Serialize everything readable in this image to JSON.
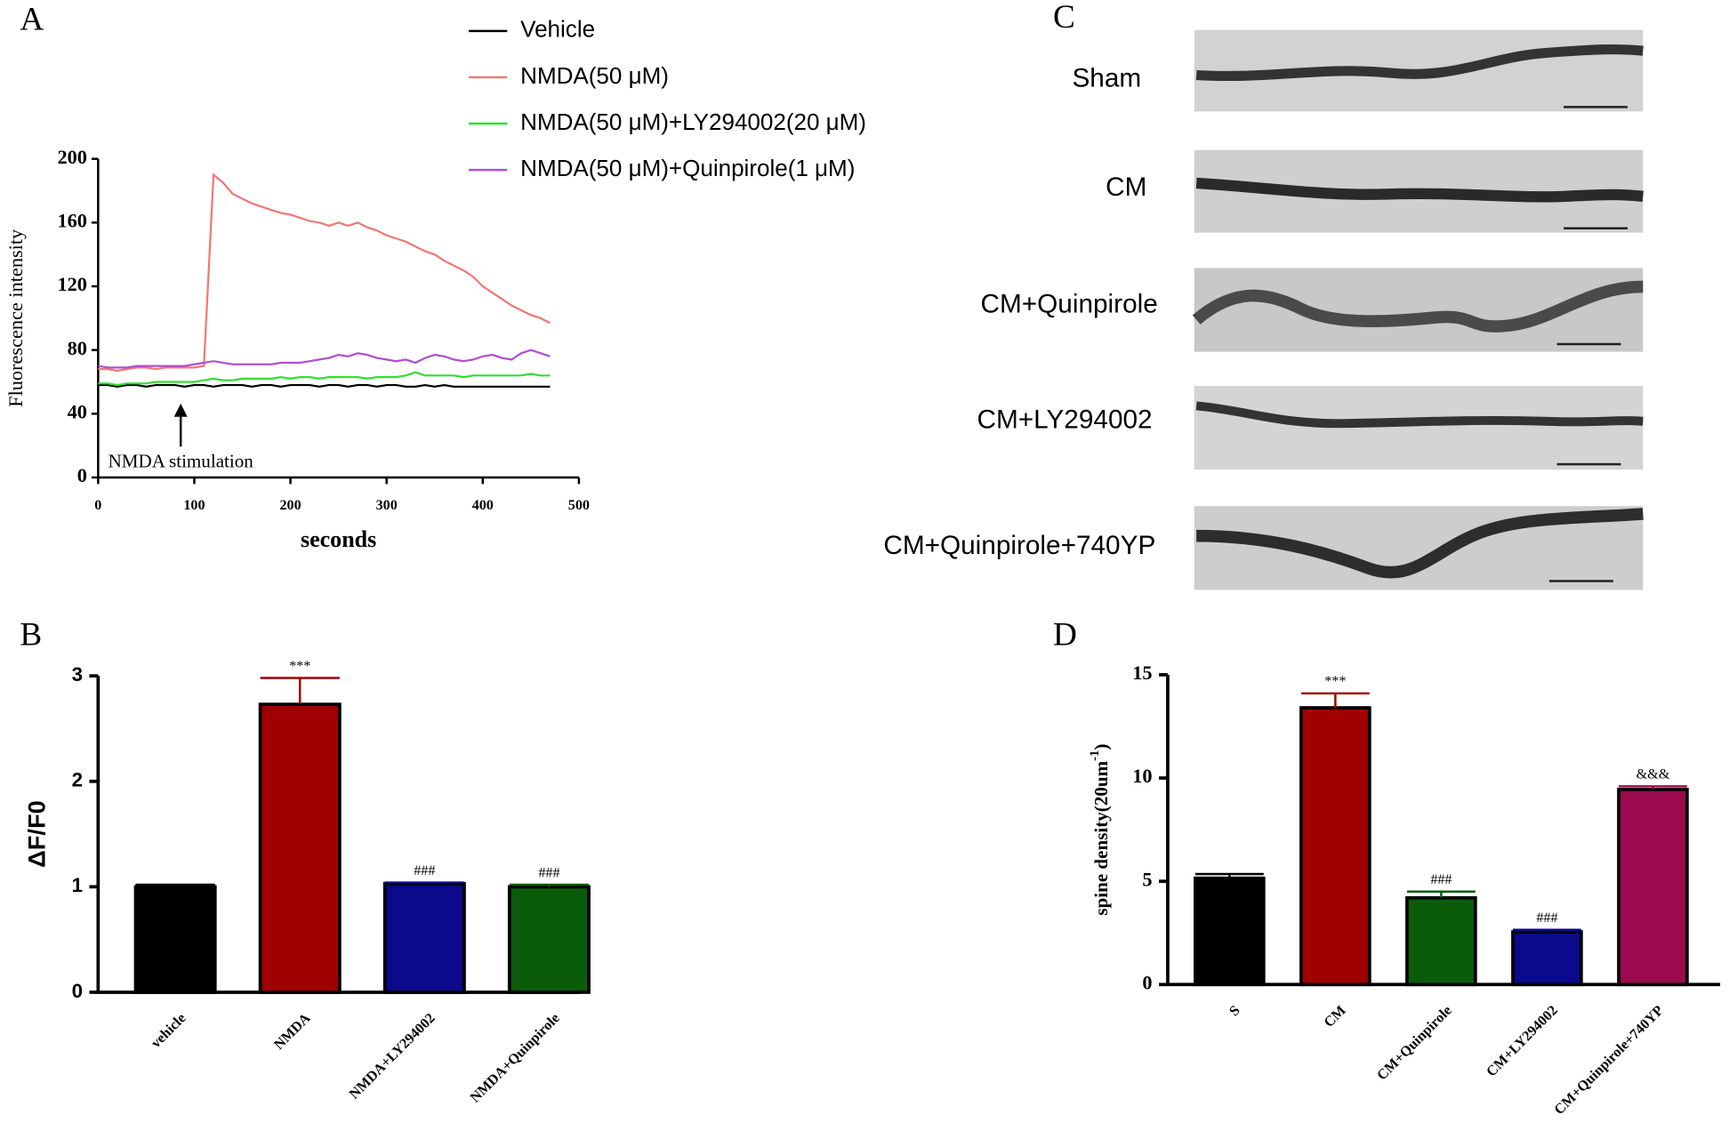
{
  "panel_labels": [
    "A",
    "B",
    "C",
    "D"
  ],
  "micrographs": {
    "labels": [
      "Sham",
      "CM",
      "CM+Quinpirole",
      "CM+LY294002",
      "CM+Quinpirole+740YP"
    ]
  },
  "chart_data": [
    {
      "type": "line",
      "xlabel": "seconds",
      "ylabel": "Fluorescence intensity",
      "x": [
        0,
        10,
        20,
        30,
        40,
        50,
        60,
        70,
        80,
        90,
        100,
        110,
        120,
        130,
        140,
        150,
        160,
        170,
        180,
        190,
        200,
        210,
        220,
        230,
        240,
        250,
        260,
        270,
        280,
        290,
        300,
        310,
        320,
        330,
        340,
        350,
        360,
        370,
        380,
        390,
        400,
        410,
        420,
        430,
        440,
        450,
        460,
        470
      ],
      "series": [
        {
          "name": "Vehicle",
          "color": "#000000",
          "values": [
            58,
            58,
            57,
            58,
            58,
            57,
            58,
            58,
            58,
            57,
            58,
            58,
            57,
            58,
            58,
            58,
            57,
            58,
            58,
            57,
            58,
            58,
            58,
            57,
            58,
            58,
            57,
            58,
            58,
            57,
            58,
            58,
            57,
            57,
            58,
            57,
            58,
            57,
            57,
            57,
            57,
            57,
            57,
            57,
            57,
            57,
            57,
            57
          ]
        },
        {
          "name": "NMDA(50 μM)",
          "color": "#f07878",
          "values": [
            68,
            68,
            67,
            68,
            69,
            69,
            68,
            69,
            69,
            69,
            69,
            70,
            190,
            185,
            178,
            175,
            172,
            170,
            168,
            166,
            165,
            163,
            161,
            160,
            158,
            160,
            158,
            160,
            157,
            155,
            152,
            150,
            148,
            145,
            142,
            140,
            136,
            133,
            130,
            126,
            120,
            116,
            112,
            108,
            105,
            102,
            100,
            97
          ]
        },
        {
          "name": "NMDA(50 μM)+LY294002(20 μM)",
          "color": "#33dd33",
          "values": [
            59,
            59,
            58,
            59,
            59,
            59,
            60,
            60,
            60,
            60,
            60,
            61,
            62,
            61,
            61,
            62,
            62,
            62,
            62,
            63,
            62,
            63,
            63,
            62,
            63,
            63,
            63,
            63,
            62,
            63,
            63,
            63,
            64,
            66,
            64,
            64,
            64,
            64,
            63,
            64,
            64,
            64,
            64,
            64,
            64,
            65,
            64,
            64
          ]
        },
        {
          "name": "NMDA(50 μM)+Quinpirole(1 μM)",
          "color": "#b04fd0",
          "values": [
            70,
            69,
            69,
            69,
            70,
            70,
            70,
            70,
            70,
            70,
            71,
            72,
            73,
            72,
            71,
            71,
            71,
            71,
            71,
            72,
            72,
            72,
            73,
            74,
            75,
            77,
            76,
            78,
            77,
            75,
            74,
            73,
            74,
            72,
            75,
            77,
            76,
            74,
            73,
            74,
            76,
            77,
            75,
            74,
            78,
            80,
            78,
            76
          ]
        }
      ],
      "xlim": [
        0,
        500
      ],
      "xticks": [
        0,
        100,
        200,
        300,
        400,
        500
      ],
      "ylim": [
        0,
        200
      ],
      "yticks": [
        0,
        40,
        80,
        120,
        160,
        200
      ],
      "annotations": [
        {
          "text": "NMDA stimulation",
          "x": 118
        }
      ]
    },
    {
      "type": "bar",
      "ylabel": "ΔF/F0",
      "categories": [
        "vehicle",
        "NMDA",
        "NMDA+LY294002",
        "NMDA+Quinpirole"
      ],
      "values": [
        1.0,
        2.73,
        1.03,
        1.0
      ],
      "errors": [
        0.02,
        0.25,
        0.01,
        0.02
      ],
      "value_labels": [
        null,
        "***",
        "###",
        "###"
      ],
      "colors": [
        "#000000",
        "#a00000",
        "#0a0a8a",
        "#0a5c0a"
      ],
      "ylim": [
        0,
        3
      ],
      "yticks": [
        0,
        1,
        2,
        3
      ]
    },
    {
      "type": "bar",
      "ylabel_parts": [
        "spine density(20um",
        "-1",
        ")"
      ],
      "categories": [
        "S",
        "CM",
        "CM+Quinpirole",
        "CM+LY294002",
        "CM+Quinpirole+740YP"
      ],
      "values": [
        5.15,
        13.4,
        4.2,
        2.55,
        9.45
      ],
      "errors": [
        0.2,
        0.7,
        0.3,
        0.1,
        0.15
      ],
      "value_labels": [
        null,
        "***",
        "###",
        "###",
        "&&&"
      ],
      "colors": [
        "#000000",
        "#a00000",
        "#0a5c0a",
        "#0a0a8a",
        "#9b0a4c"
      ],
      "ylim": [
        0,
        15
      ],
      "yticks": [
        0,
        5,
        10,
        15
      ]
    }
  ]
}
